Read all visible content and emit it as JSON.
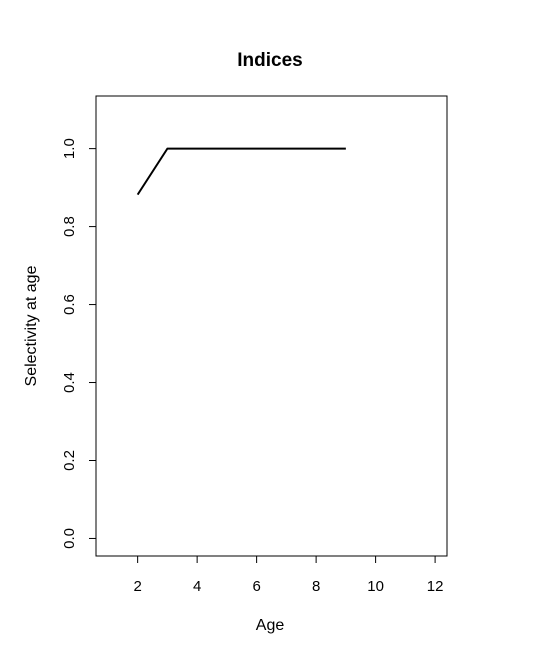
{
  "chart_data": {
    "type": "line",
    "title": "Indices",
    "xlabel": "Age",
    "ylabel": "Selectivity at age",
    "xlim": [
      0.6,
      12.4
    ],
    "ylim": [
      -0.045,
      1.135
    ],
    "xticks": [
      2,
      4,
      6,
      8,
      10,
      12
    ],
    "yticks": [
      0.0,
      0.2,
      0.4,
      0.6,
      0.8,
      1.0
    ],
    "ytick_labels": [
      "0.0",
      "0.2",
      "0.4",
      "0.6",
      "0.8",
      "1.0"
    ],
    "grid": false,
    "series": [
      {
        "x": [
          2,
          3,
          4,
          5,
          6,
          7,
          8,
          9
        ],
        "y": [
          0.882,
          1.0,
          1.0,
          1.0,
          1.0,
          1.0,
          1.0,
          1.0
        ],
        "color": "#000000"
      }
    ]
  }
}
